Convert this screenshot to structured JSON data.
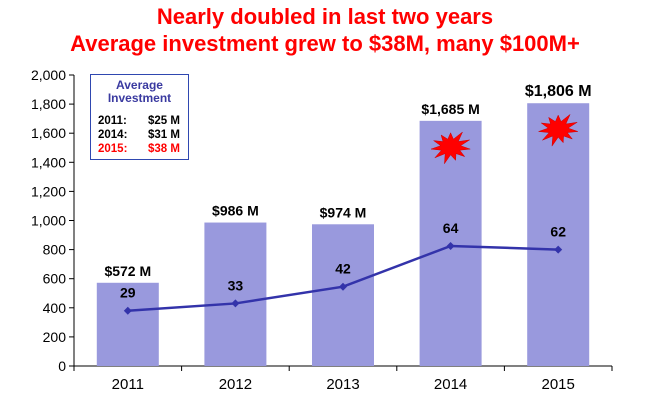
{
  "title_line1": "Nearly doubled in last two years",
  "title_line2": "Average investment grew to $38M, many $100M+",
  "legend": {
    "heading_line1": "Average",
    "heading_line2": "Investment",
    "rows": [
      {
        "year": "2011:",
        "amount": "$25 M",
        "color": "#000000"
      },
      {
        "year": "2014:",
        "amount": "$31 M",
        "color": "#000000"
      },
      {
        "year": "2015:",
        "amount": "$38 M",
        "color": "#ff0000"
      }
    ]
  },
  "chart_data": {
    "type": "bar",
    "categories": [
      "2011",
      "2012",
      "2013",
      "2014",
      "2015"
    ],
    "series": [
      {
        "type": "bar",
        "values": [
          572,
          986,
          974,
          1685,
          1806
        ],
        "labels": [
          "$572 M",
          "$986 M",
          "$974 M",
          "$1,685 M",
          "$1,806 M"
        ],
        "color": "#9999dd"
      },
      {
        "type": "line",
        "values": [
          380,
          430,
          545,
          825,
          800
        ],
        "labels": [
          "29",
          "33",
          "42",
          "64",
          "62"
        ],
        "color": "#3333aa"
      }
    ],
    "ylim": [
      0,
      2000
    ],
    "yticks": [
      0,
      200,
      400,
      600,
      800,
      1000,
      1200,
      1400,
      1600,
      1800,
      2000
    ],
    "ytick_labels": [
      "0",
      "200",
      "400",
      "600",
      "800",
      "1,000",
      "1,200",
      "1,400",
      "1,600",
      "1,800",
      "2,000"
    ],
    "starburst_on": [
      "2014",
      "2015"
    ],
    "starburst_color": "#ff0000",
    "grid": false
  }
}
